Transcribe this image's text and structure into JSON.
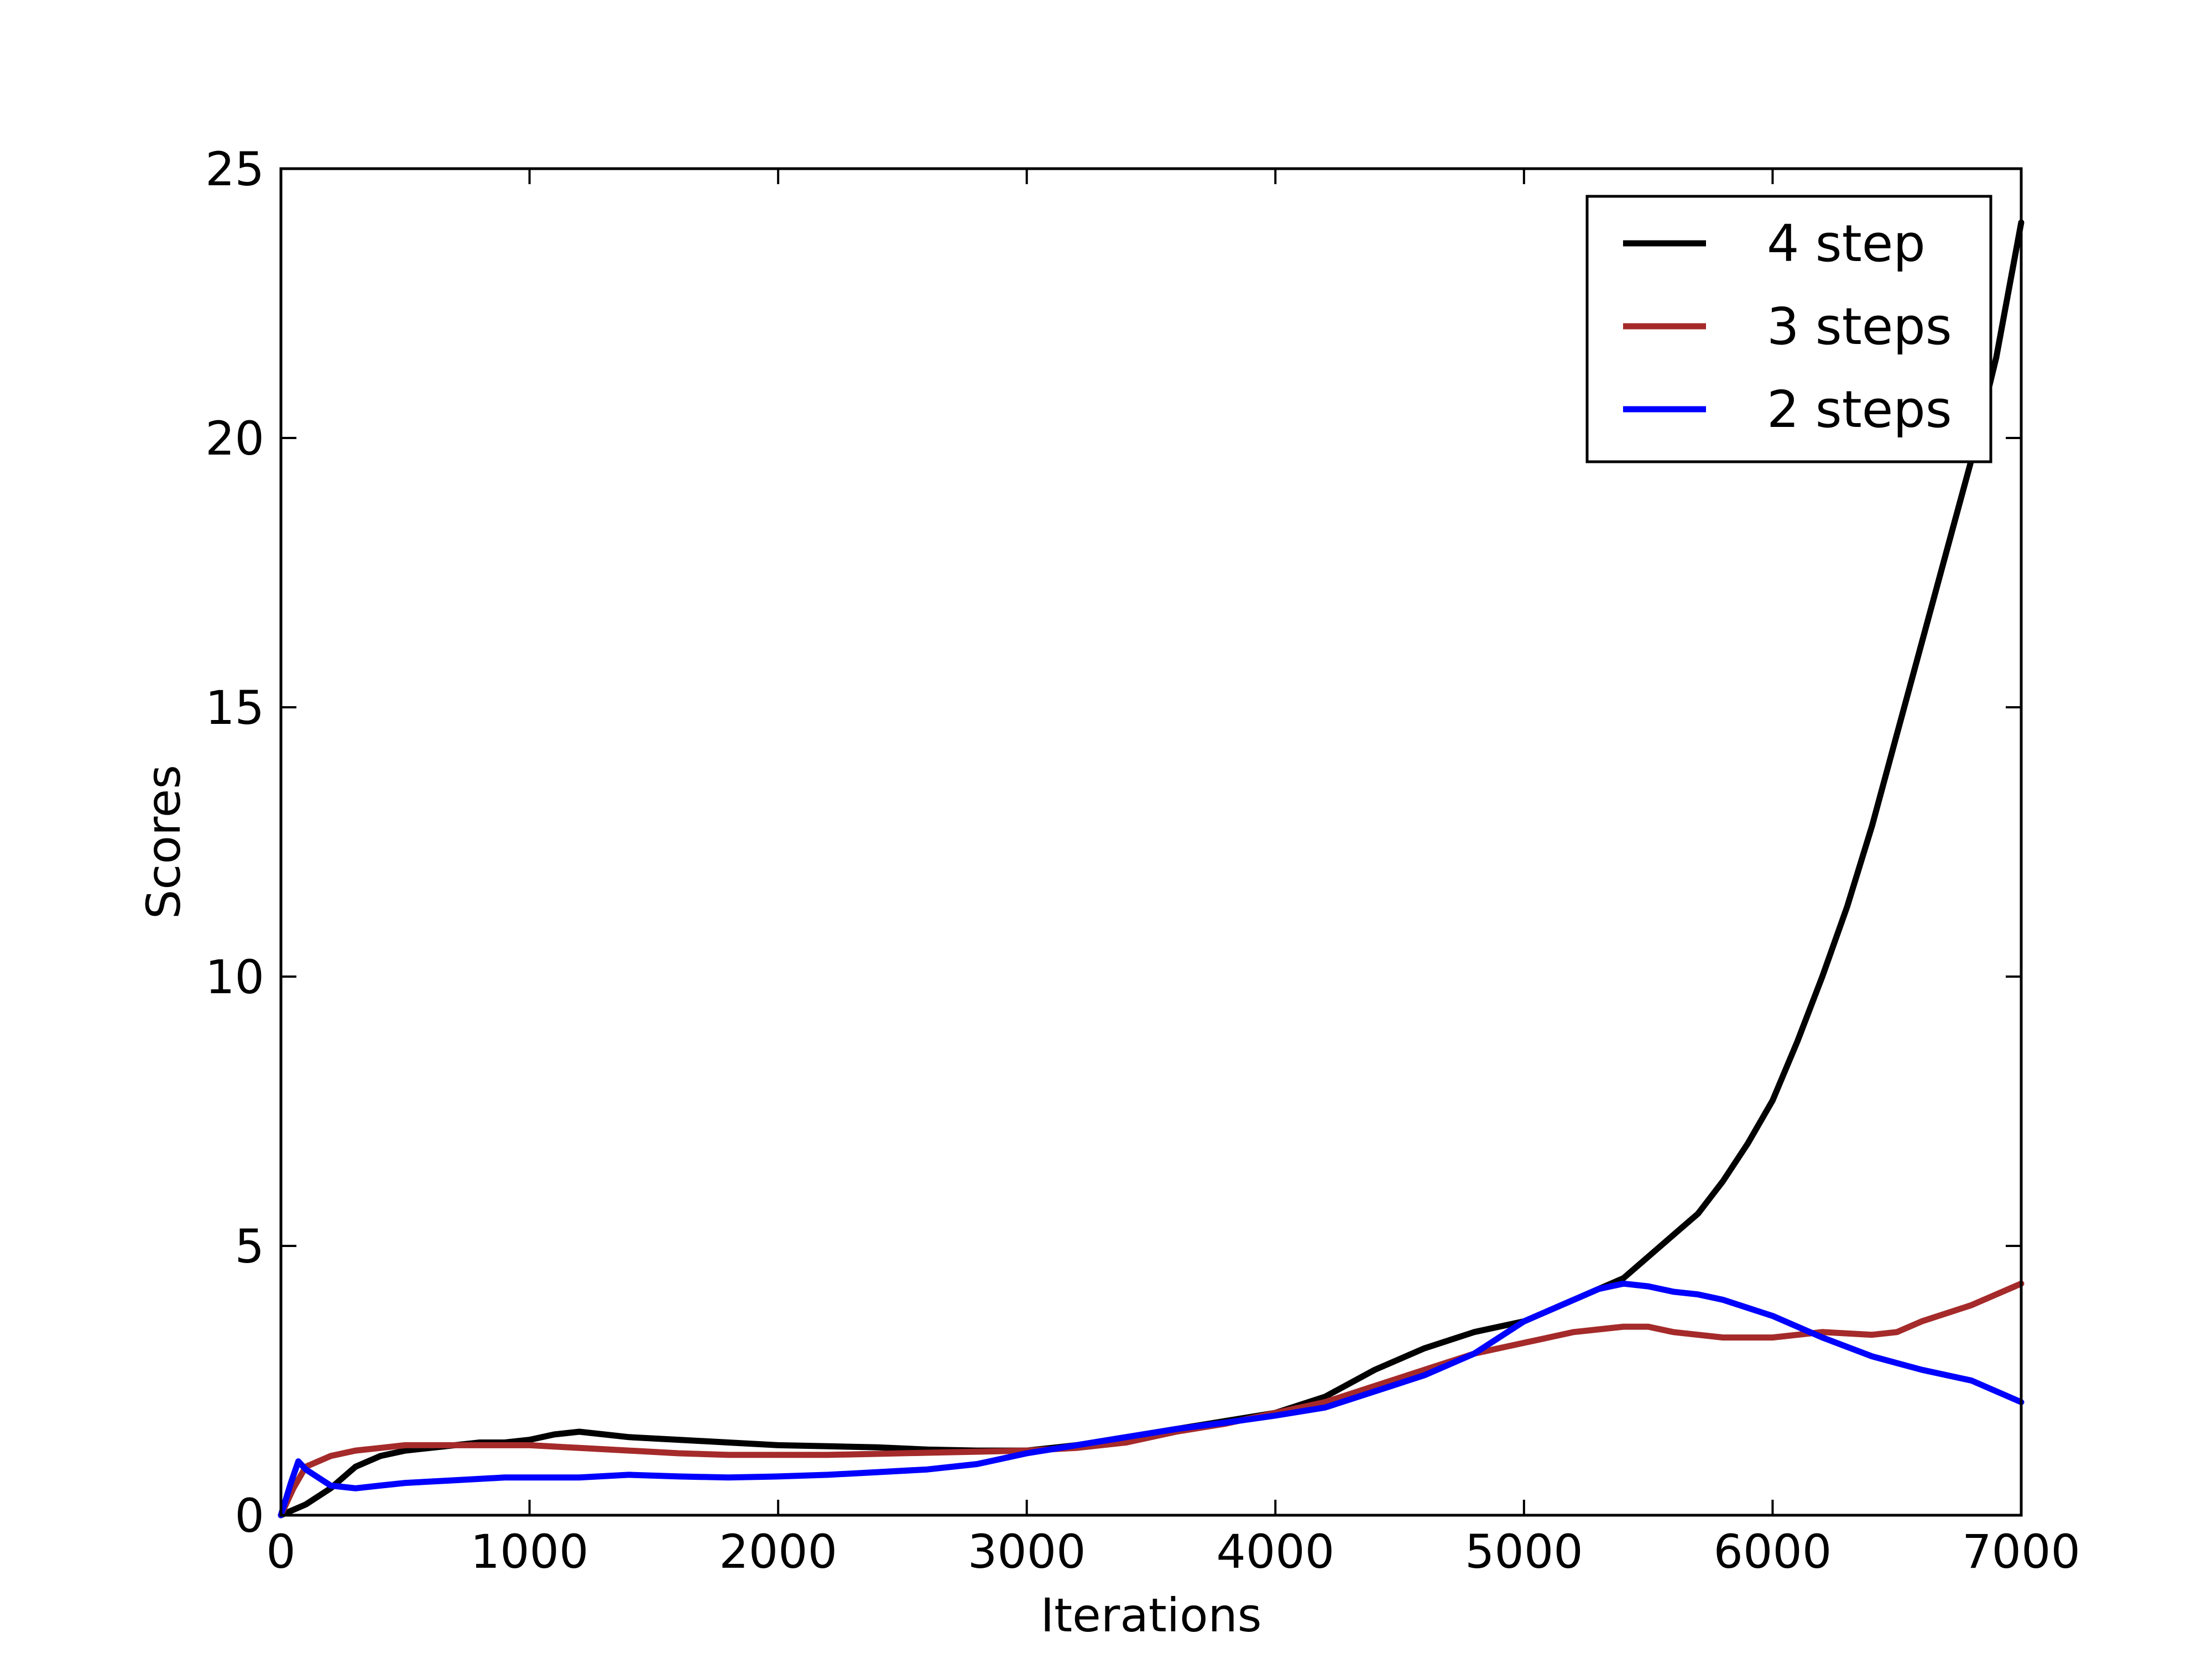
{
  "chart_data": {
    "type": "line",
    "title": "",
    "xlabel": "Iterations",
    "ylabel": "Scores",
    "xlim": [
      0,
      7000
    ],
    "ylim": [
      0,
      25
    ],
    "xticks": [
      0,
      1000,
      2000,
      3000,
      4000,
      5000,
      6000,
      7000
    ],
    "yticks": [
      0,
      5,
      10,
      15,
      20,
      25
    ],
    "xtick_labels": [
      "0",
      "1000",
      "2000",
      "3000",
      "4000",
      "5000",
      "6000",
      "7000"
    ],
    "ytick_labels": [
      "0",
      "5",
      "10",
      "15",
      "20",
      "25"
    ],
    "grid": false,
    "legend_position": "top-right",
    "series": [
      {
        "name": "4 step",
        "color": "#000000",
        "x": [
          0,
          100,
          200,
          300,
          400,
          500,
          600,
          700,
          800,
          900,
          1000,
          1100,
          1200,
          1300,
          1400,
          1600,
          1800,
          2000,
          2200,
          2400,
          2600,
          2800,
          3000,
          3200,
          3400,
          3600,
          3800,
          4000,
          4200,
          4400,
          4600,
          4800,
          5000,
          5200,
          5400,
          5500,
          5600,
          5700,
          5800,
          5900,
          6000,
          6100,
          6200,
          6300,
          6400,
          6500,
          6600,
          6700,
          6800,
          6900,
          7000
        ],
        "y": [
          0,
          0.2,
          0.5,
          0.9,
          1.1,
          1.2,
          1.25,
          1.3,
          1.35,
          1.35,
          1.4,
          1.5,
          1.55,
          1.5,
          1.45,
          1.4,
          1.35,
          1.3,
          1.28,
          1.26,
          1.22,
          1.2,
          1.2,
          1.3,
          1.45,
          1.6,
          1.75,
          1.9,
          2.2,
          2.7,
          3.1,
          3.4,
          3.6,
          4.0,
          4.4,
          4.8,
          5.2,
          5.6,
          6.2,
          6.9,
          7.7,
          8.8,
          10.0,
          11.3,
          12.8,
          14.5,
          16.2,
          17.9,
          19.6,
          21.5,
          24.0
        ]
      },
      {
        "name": "3 steps",
        "color": "#a52a2a",
        "x": [
          0,
          50,
          100,
          200,
          300,
          400,
          500,
          700,
          900,
          1000,
          1200,
          1400,
          1600,
          1800,
          2000,
          2200,
          2400,
          2600,
          2800,
          3000,
          3200,
          3400,
          3600,
          3800,
          4000,
          4200,
          4400,
          4600,
          4800,
          5000,
          5200,
          5400,
          5500,
          5600,
          5800,
          6000,
          6200,
          6400,
          6500,
          6600,
          6800,
          7000
        ],
        "y": [
          0,
          0.5,
          0.9,
          1.1,
          1.2,
          1.25,
          1.3,
          1.3,
          1.3,
          1.3,
          1.25,
          1.2,
          1.15,
          1.12,
          1.12,
          1.12,
          1.14,
          1.16,
          1.18,
          1.2,
          1.25,
          1.35,
          1.55,
          1.7,
          1.9,
          2.1,
          2.4,
          2.7,
          3.0,
          3.2,
          3.4,
          3.5,
          3.5,
          3.4,
          3.3,
          3.3,
          3.4,
          3.35,
          3.4,
          3.6,
          3.9,
          4.3
        ]
      },
      {
        "name": "2 steps",
        "color": "#0000ff",
        "x": [
          0,
          40,
          70,
          100,
          150,
          200,
          300,
          400,
          500,
          700,
          900,
          1000,
          1200,
          1400,
          1600,
          1800,
          2000,
          2200,
          2400,
          2600,
          2800,
          3000,
          3200,
          3400,
          3600,
          3800,
          4000,
          4200,
          4400,
          4600,
          4800,
          5000,
          5200,
          5300,
          5400,
          5500,
          5600,
          5700,
          5800,
          6000,
          6200,
          6400,
          6600,
          6800,
          7000
        ],
        "y": [
          0,
          0.6,
          1.0,
          0.85,
          0.7,
          0.55,
          0.5,
          0.55,
          0.6,
          0.65,
          0.7,
          0.7,
          0.7,
          0.75,
          0.72,
          0.7,
          0.72,
          0.75,
          0.8,
          0.85,
          0.95,
          1.15,
          1.3,
          1.45,
          1.6,
          1.72,
          1.85,
          2.0,
          2.3,
          2.6,
          3.0,
          3.6,
          4.0,
          4.2,
          4.3,
          4.25,
          4.15,
          4.1,
          4.0,
          3.7,
          3.3,
          2.95,
          2.7,
          2.5,
          2.1
        ]
      }
    ]
  }
}
